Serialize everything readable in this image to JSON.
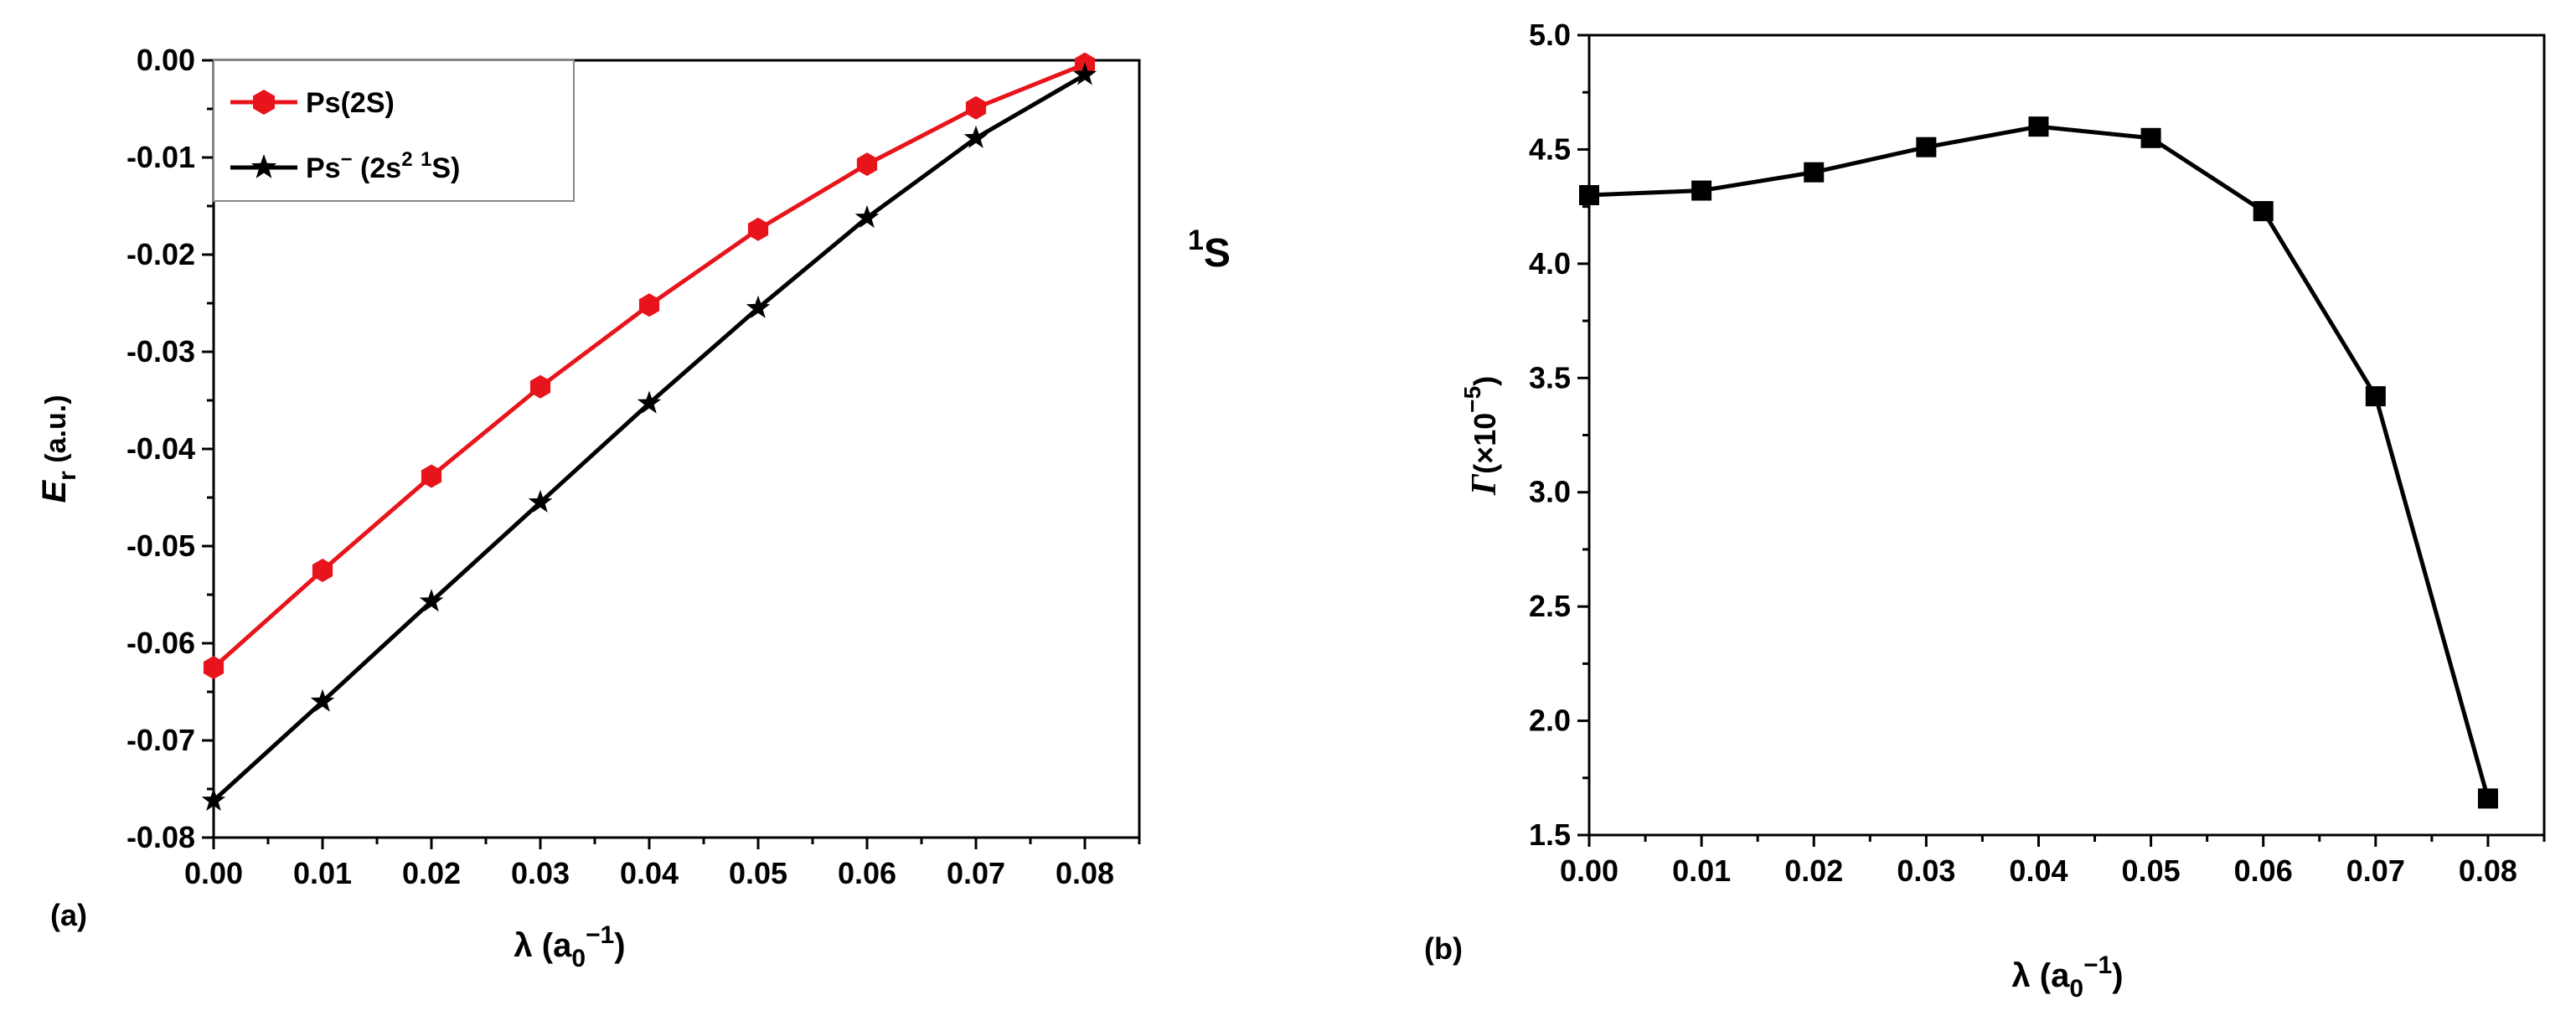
{
  "panels": {
    "a_label": "(a)",
    "b_label": "(b)"
  },
  "chart_data": [
    {
      "type": "line",
      "x": [
        0.0,
        0.01,
        0.02,
        0.03,
        0.04,
        0.05,
        0.06,
        0.07,
        0.08
      ],
      "xlim": [
        0.0,
        0.085
      ],
      "ylim": [
        -0.08,
        0.0
      ],
      "x_ticks": [
        "0.00",
        "0.01",
        "0.02",
        "0.03",
        "0.04",
        "0.05",
        "0.06",
        "0.07",
        "0.08"
      ],
      "y_ticks": [
        "0.00",
        "-0.01",
        "-0.02",
        "-0.03",
        "-0.04",
        "-0.05",
        "-0.06",
        "-0.07",
        "-0.08"
      ],
      "xlabel": {
        "main": "λ (a",
        "sub": "0",
        "sup": "−1",
        "close": ")"
      },
      "ylabel": {
        "main": "E",
        "sub": "r",
        "rest": " (a.u.)"
      },
      "legend_position": "top-left",
      "series": [
        {
          "name": "Ps(2S)",
          "color": "#e8141b",
          "marker": "hexagon",
          "y": [
            -0.0625,
            -0.0525,
            -0.0428,
            -0.0336,
            -0.0252,
            -0.0174,
            -0.0107,
            -0.0049,
            -0.0004
          ]
        },
        {
          "name": "Ps⁻ (2s² ¹S)",
          "legend_text": {
            "a": "Ps",
            "a_sup": "−",
            "b": " (2s",
            "b_sup": "2",
            "c": " ",
            "c_sup": "1",
            "d": "S)"
          },
          "color": "#000000",
          "marker": "star",
          "y": [
            -0.0762,
            -0.066,
            -0.0557,
            -0.0455,
            -0.0353,
            -0.0255,
            -0.0162,
            -0.008,
            -0.0015
          ]
        }
      ]
    },
    {
      "type": "line",
      "x": [
        0.0,
        0.01,
        0.02,
        0.03,
        0.04,
        0.05,
        0.06,
        0.07,
        0.08
      ],
      "xlim": [
        0.0,
        0.085
      ],
      "ylim": [
        1.5,
        5.0
      ],
      "x_ticks": [
        "0.00",
        "0.01",
        "0.02",
        "0.03",
        "0.04",
        "0.05",
        "0.06",
        "0.07",
        "0.08"
      ],
      "y_ticks": [
        "1.5",
        "2.0",
        "2.5",
        "3.0",
        "3.5",
        "4.0",
        "4.5",
        "5.0"
      ],
      "xlabel": {
        "main": "λ (a",
        "sub": "0",
        "sup": "−1",
        "close": ")"
      },
      "ylabel": {
        "main": "Γ",
        "rest": "(×10",
        "sup": "−5",
        "close": ")"
      },
      "annotation": {
        "sup": "1",
        "main": "S"
      },
      "series": [
        {
          "color": "#000000",
          "marker": "square",
          "y": [
            4.3,
            4.32,
            4.4,
            4.51,
            4.6,
            4.55,
            4.23,
            3.42,
            1.66
          ]
        }
      ]
    }
  ]
}
